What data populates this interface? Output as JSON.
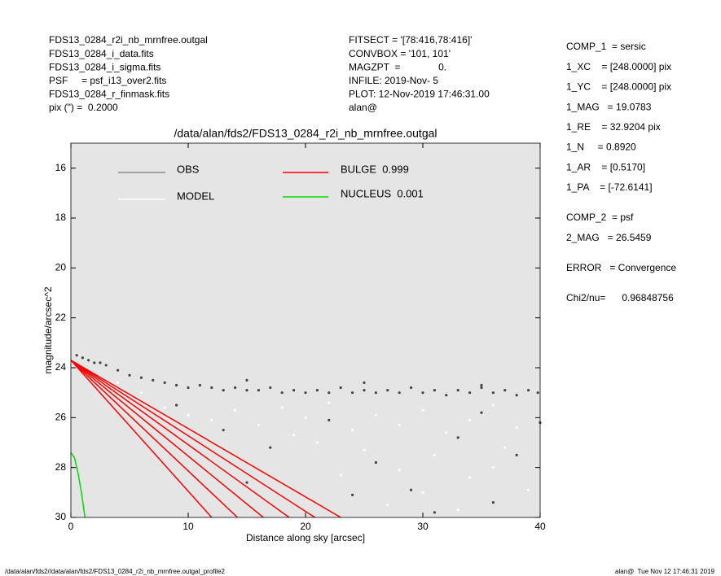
{
  "header": {
    "left": [
      "FDS13_0284_r2i_nb_mrnfree.outgal",
      "FDS13_0284_i_data.fits",
      "FDS13_0284_i_sigma.fits",
      "PSF     = psf_i13_over2.fits",
      "FDS13_0284_r_finmask.fits",
      "pix (\") =  0.2000"
    ],
    "middle": [
      "FITSECT = '[78:416,78:416]'",
      "CONVBOX = '101, 101'",
      "MAGZPT  =              0.",
      "INFILE: 2019-Nov- 5",
      "PLOT: 12-Nov-2019 17:46:31.00",
      "alan@"
    ]
  },
  "params": [
    [
      "COMP_1  = sersic",
      "1_XC    = [248.0000] pix",
      "1_YC    = [248.0000] pix",
      "1_MAG   = 19.0783",
      "1_RE    = 32.9204 pix",
      "1_N     = 0.8920",
      "1_AR    = [0.5170]",
      "1_PA    = [-72.6141]"
    ],
    [
      "COMP_2  = psf",
      "2_MAG   = 26.5459"
    ],
    [
      "ERROR   = Convergence"
    ],
    [
      "Chi2/nu=      0.96848756"
    ]
  ],
  "footer": {
    "left": "/data/alan/fds2//data/alan/fds2/FDS13_0284_r2i_nb_mrnfree.outgal_profile2",
    "right": "alan@  Tue Nov 12 17:46:31 2019"
  },
  "chart_data": {
    "type": "scatter",
    "title": "/data/alan/fds2/FDS13_0284_r2i_nb_mrnfree.outgal",
    "x_label": "Distance along sky [arcsec]",
    "y_label": "magnitude/arcsec^2",
    "xlim": [
      0,
      40
    ],
    "xticks": [
      0,
      10,
      20,
      30,
      40
    ],
    "ylim": [
      30,
      15
    ],
    "yticks": [
      16,
      18,
      20,
      22,
      24,
      26,
      28,
      30
    ],
    "background": "#e5e5e5",
    "series": [
      {
        "name": "OBS",
        "color": "#444444",
        "legend_color": "#8c8c8c",
        "x": [
          0.5,
          1,
          1.5,
          2,
          2.5,
          3,
          4,
          5,
          6,
          7,
          8,
          9,
          10,
          11,
          12,
          13,
          14,
          15,
          16,
          17,
          18,
          19,
          20,
          21,
          22,
          23,
          24,
          25,
          26,
          27,
          28,
          29,
          30,
          31,
          32,
          33,
          34,
          35,
          36,
          37,
          38,
          39,
          39.8,
          13,
          17,
          22,
          26,
          29,
          33,
          36,
          38,
          31,
          24,
          15,
          40,
          35,
          9,
          15,
          25,
          35
        ],
        "values": [
          23.5,
          23.6,
          23.7,
          23.8,
          23.8,
          23.9,
          24.1,
          24.3,
          24.4,
          24.5,
          24.6,
          24.7,
          24.8,
          24.7,
          24.8,
          24.9,
          24.8,
          24.9,
          24.9,
          24.8,
          25.0,
          24.9,
          25.0,
          24.9,
          25.0,
          24.8,
          25.0,
          24.9,
          25.0,
          24.9,
          25.0,
          24.8,
          25.0,
          24.9,
          25.1,
          24.9,
          25.0,
          24.8,
          25.0,
          24.9,
          25.1,
          24.9,
          25.0,
          26.5,
          27.2,
          26.1,
          27.8,
          28.9,
          26.8,
          29.4,
          27.5,
          29.8,
          29.1,
          28.6,
          26.2,
          25.8,
          25.5,
          24.5,
          24.6,
          24.7
        ]
      },
      {
        "name": "MODEL",
        "color": "#ffffff",
        "legend_color": "#ffffff",
        "x": [
          4,
          6,
          8,
          10,
          12,
          14,
          16,
          18,
          20,
          22,
          24,
          26,
          28,
          30,
          32,
          34,
          36,
          38,
          40,
          25,
          28,
          31,
          34,
          37,
          39,
          27,
          30,
          33,
          36,
          23,
          21,
          19
        ],
        "values": [
          24.6,
          25.0,
          25.6,
          25.9,
          26.1,
          25.7,
          26.3,
          25.6,
          26.0,
          25.4,
          26.5,
          25.9,
          26.3,
          25.7,
          26.6,
          26.1,
          25.5,
          26.4,
          26.0,
          27.3,
          28.1,
          27.5,
          28.4,
          27.2,
          28.9,
          29.5,
          29.0,
          29.7,
          28.0,
          28.3,
          27.0,
          26.7
        ]
      }
    ],
    "components": [
      {
        "name": "BULGE  0.999",
        "color": "#ff0000",
        "segments": [
          {
            "x": [
              0,
              12.0
            ],
            "values": [
              23.7,
              30
            ]
          },
          {
            "x": [
              0,
              14.2
            ],
            "values": [
              23.7,
              30
            ]
          },
          {
            "x": [
              0,
              16.4
            ],
            "values": [
              23.7,
              30
            ]
          },
          {
            "x": [
              0,
              18.6
            ],
            "values": [
              23.7,
              30
            ]
          },
          {
            "x": [
              0,
              20.8
            ],
            "values": [
              23.7,
              30
            ]
          },
          {
            "x": [
              0,
              23.0
            ],
            "values": [
              23.7,
              30
            ]
          }
        ]
      },
      {
        "name": "NUCLEUS  0.001",
        "color": "#00dd00",
        "segments": [
          {
            "x": [
              0,
              0.3,
              0.6,
              0.9,
              1.2
            ],
            "values": [
              27.4,
              27.6,
              28.2,
              29.0,
              30
            ]
          }
        ]
      }
    ]
  }
}
